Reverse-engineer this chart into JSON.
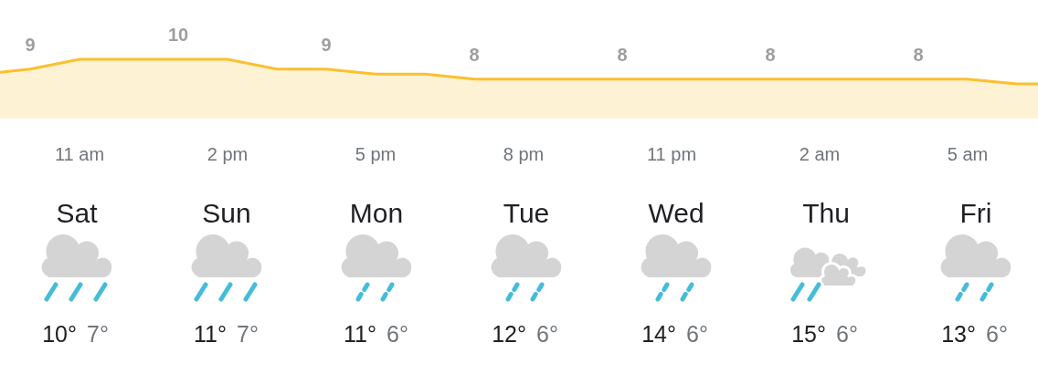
{
  "chart_data": [
    {
      "type": "area",
      "categories": [
        null,
        null,
        "11 am",
        null,
        null,
        "2 pm",
        null,
        null,
        "5 pm",
        null,
        null,
        "8 pm",
        null,
        null,
        "11 pm",
        null,
        null,
        "2 am",
        null,
        null,
        "5 am",
        null,
        null
      ],
      "values": [
        8.5,
        9,
        10,
        10,
        10,
        10,
        9,
        9,
        8.5,
        8.5,
        8,
        8,
        8,
        8,
        8,
        8,
        8,
        8,
        8,
        8,
        8,
        7.5,
        7.5
      ],
      "value_labels": [
        null,
        "9",
        null,
        null,
        "10",
        null,
        null,
        "9",
        null,
        null,
        "8",
        null,
        null,
        "8",
        null,
        null,
        "8",
        null,
        null,
        "8",
        null,
        null,
        null
      ],
      "color": "#fbc02d",
      "tick_labels": "x"
    },
    {
      "type": "other",
      "categories": [
        "Sat",
        "Sun",
        "Mon",
        "Tue",
        "Wed",
        "Thu",
        "Fri"
      ],
      "series": [
        {
          "values": [
            10,
            11,
            11,
            12,
            14,
            15,
            13
          ],
          "value_labels": [
            "10°",
            "11°",
            "11°",
            "12°",
            "14°",
            "15°",
            "13°"
          ],
          "color": "#202124"
        },
        {
          "values": [
            7,
            7,
            6,
            6,
            6,
            6,
            6
          ],
          "value_labels": [
            "7°",
            "7°",
            "6°",
            "6°",
            "6°",
            "6°",
            "6°"
          ],
          "color": "#70757a"
        }
      ]
    }
  ]
}
